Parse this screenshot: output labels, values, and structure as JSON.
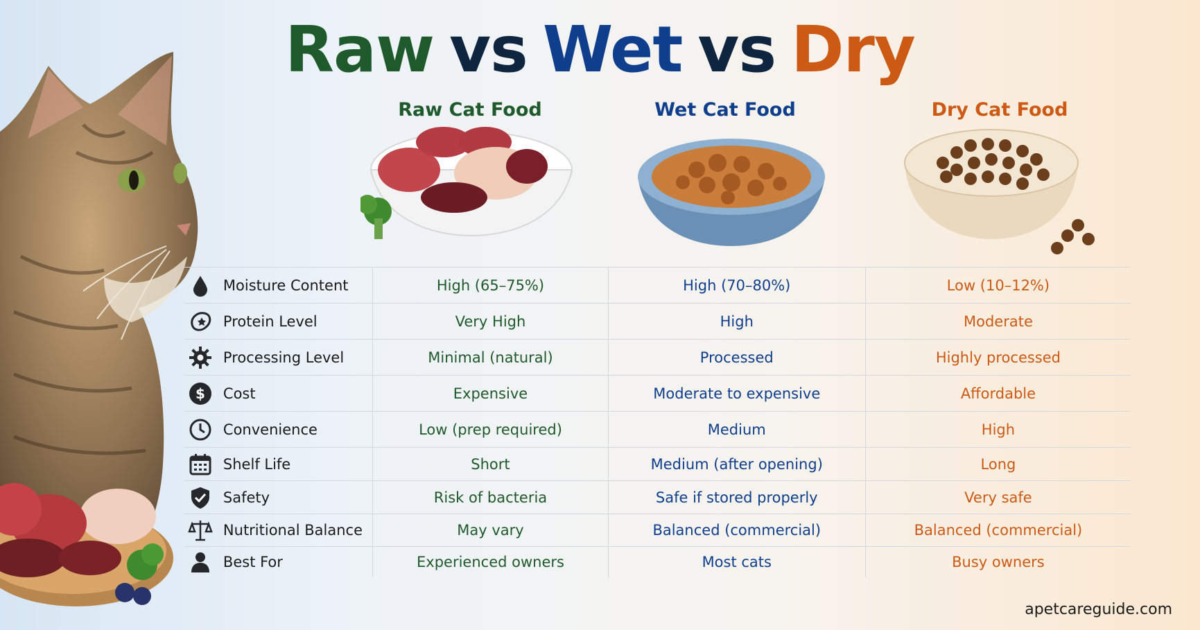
{
  "title": {
    "raw": "Raw",
    "vs1": "vs",
    "wet": "Wet",
    "vs2": "vs",
    "dry": "Dry"
  },
  "columns": {
    "raw": "Raw Cat Food",
    "wet": "Wet Cat Food",
    "dry": "Dry Cat Food"
  },
  "rows": [
    {
      "icon": "water-drop-icon",
      "label": "Moisture Content",
      "raw": "High (65–75%)",
      "wet": "High (70–80%)",
      "dry": "Low (10–12%)"
    },
    {
      "icon": "meat-protein-icon",
      "label": "Protein Level",
      "raw": "Very High",
      "wet": "High",
      "dry": "Moderate"
    },
    {
      "icon": "gear-icon",
      "label": "Processing Level",
      "raw": "Minimal (natural)",
      "wet": "Processed",
      "dry": "Highly processed"
    },
    {
      "icon": "dollar-icon",
      "label": "Cost",
      "raw": "Expensive",
      "wet": "Moderate to expensive",
      "dry": "Affordable"
    },
    {
      "icon": "clock-icon",
      "label": "Convenience",
      "raw": "Low (prep required)",
      "wet": "Medium",
      "dry": "High"
    },
    {
      "icon": "calendar-icon",
      "label": "Shelf Life",
      "raw": "Short",
      "wet": "Medium (after opening)",
      "dry": "Long"
    },
    {
      "icon": "shield-check-icon",
      "label": "Safety",
      "raw": "Risk of bacteria",
      "wet": "Safe if stored properly",
      "dry": "Very safe"
    },
    {
      "icon": "scale-icon",
      "label": "Nutritional Balance",
      "raw": "May vary",
      "wet": "Balanced (commercial)",
      "dry": "Balanced (commercial)"
    },
    {
      "icon": "person-icon",
      "label": "Best For",
      "raw": "Experienced owners",
      "wet": "Most cats",
      "dry": "Busy owners"
    }
  ],
  "footer": "apetcareguide.com",
  "colors": {
    "raw": "#1f5a2c",
    "wet": "#0f3f8c",
    "dry": "#cc5a14",
    "vs": "#0e2540"
  }
}
